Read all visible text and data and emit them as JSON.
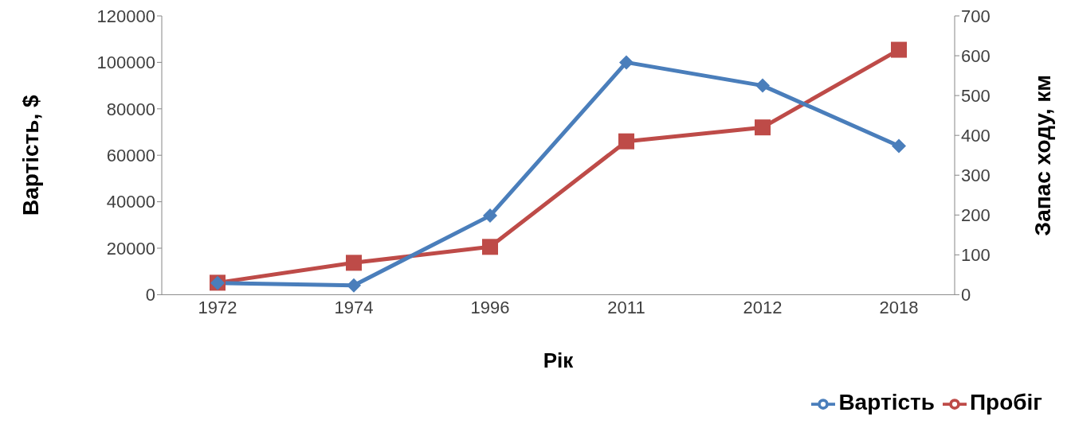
{
  "chart_data": {
    "type": "line",
    "xlabel": "Рік",
    "ylabel": "Вартість, $",
    "y2label": "Запас ходу, км",
    "categories": [
      "1972",
      "1974",
      "1996",
      "2011",
      "2012",
      "2018"
    ],
    "series": [
      {
        "name": "Вартість",
        "color": "#4a7ebb",
        "marker": "diamond",
        "values": [
          5000,
          4000,
          34000,
          100000,
          90000,
          64000
        ]
      },
      {
        "name": "Пробіг",
        "color": "#be4b48",
        "marker": "square",
        "axis": "y2",
        "values": [
          30,
          80,
          120,
          385,
          420,
          615
        ]
      }
    ],
    "ylim": [
      0,
      120000
    ],
    "yticks": [
      0,
      20000,
      40000,
      60000,
      80000,
      100000,
      120000
    ],
    "y2lim": [
      0,
      700
    ],
    "y2ticks": [
      0,
      100,
      200,
      300,
      400,
      500,
      600,
      700
    ],
    "grid": false,
    "legend": "bottom right",
    "line_style": "solid"
  }
}
